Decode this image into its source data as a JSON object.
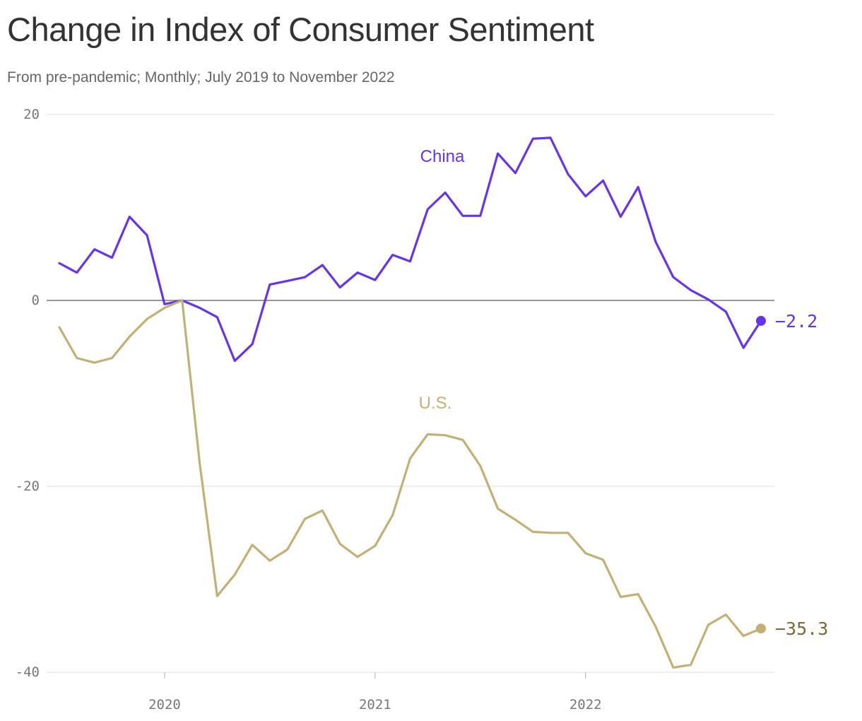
{
  "chart_data": {
    "type": "line",
    "title": "Change in Index of Consumer Sentiment",
    "subtitle": "From pre-pandemic; Monthly; July 2019 to November 2022",
    "xlabel": "",
    "ylabel": "",
    "ylim": [
      -40,
      20
    ],
    "yticks": [
      20,
      0,
      -20,
      -40
    ],
    "xticks": [
      {
        "label": "2020",
        "x": "2020-01"
      },
      {
        "label": "2021",
        "x": "2021-01"
      },
      {
        "label": "2022",
        "x": "2022-01"
      }
    ],
    "grid": true,
    "legend": "none",
    "x": [
      "2019-07",
      "2019-08",
      "2019-09",
      "2019-10",
      "2019-11",
      "2019-12",
      "2020-01",
      "2020-02",
      "2020-03",
      "2020-04",
      "2020-05",
      "2020-06",
      "2020-07",
      "2020-08",
      "2020-09",
      "2020-10",
      "2020-11",
      "2020-12",
      "2021-01",
      "2021-02",
      "2021-03",
      "2021-04",
      "2021-05",
      "2021-06",
      "2021-07",
      "2021-08",
      "2021-09",
      "2021-10",
      "2021-11",
      "2021-12",
      "2022-01",
      "2022-02",
      "2022-03",
      "2022-04",
      "2022-05",
      "2022-06",
      "2022-07",
      "2022-08",
      "2022-09",
      "2022-10",
      "2022-11"
    ],
    "series": [
      {
        "name": "China",
        "color": "#6633ee",
        "end_label": "−2.2",
        "values": [
          4.0,
          3.0,
          5.5,
          4.6,
          9.0,
          7.0,
          -0.4,
          0.0,
          -0.8,
          -1.8,
          -6.5,
          -4.7,
          1.7,
          2.1,
          2.5,
          3.8,
          1.4,
          3.0,
          2.2,
          4.9,
          4.2,
          9.8,
          11.6,
          9.1,
          9.1,
          15.8,
          13.7,
          17.4,
          17.5,
          13.6,
          11.2,
          12.9,
          9.0,
          12.2,
          6.3,
          2.5,
          1.1,
          0.1,
          -1.2,
          -5.1,
          -2.2
        ]
      },
      {
        "name": "U.S.",
        "color": "#c2b074",
        "end_label": "−35.3",
        "values": [
          -2.9,
          -6.2,
          -6.7,
          -6.2,
          -3.9,
          -2.0,
          -0.8,
          0.0,
          -17.5,
          -31.8,
          -29.5,
          -26.3,
          -28.0,
          -26.8,
          -23.5,
          -22.6,
          -26.2,
          -27.6,
          -26.4,
          -23.1,
          -17.0,
          -14.4,
          -14.5,
          -15.0,
          -17.8,
          -22.4,
          -23.6,
          -24.9,
          -25.0,
          -25.0,
          -27.2,
          -27.9,
          -31.9,
          -31.6,
          -35.1,
          -39.5,
          -39.2,
          -34.9,
          -33.8,
          -36.1,
          -35.3
        ]
      }
    ]
  }
}
